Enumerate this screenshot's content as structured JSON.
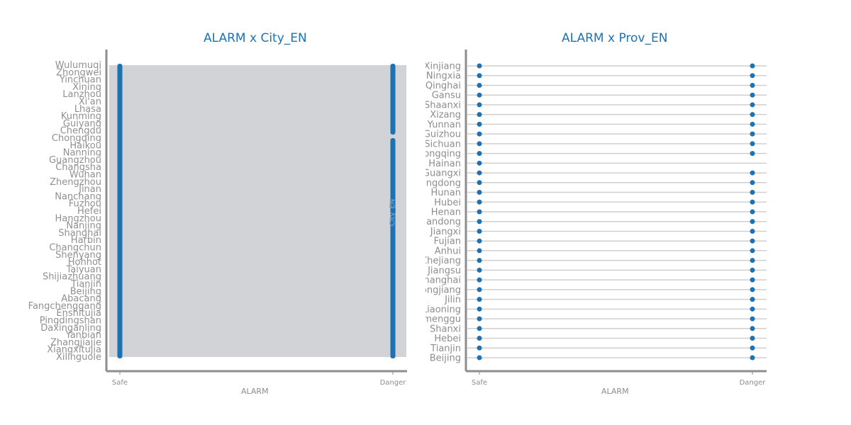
{
  "colors": {
    "accent": "#1f72b1",
    "axis": "#8d8d8d",
    "band": "#d1d3d6",
    "grid": "#cfcfcf"
  },
  "chart_data": [
    {
      "type": "scatter",
      "title": "ALARM x City_EN",
      "xlabel": "ALARM",
      "ylabel": "City_EN",
      "x_categories": [
        "Safe",
        "Danger"
      ],
      "y_labels_visible": [
        "Wulumuqi",
        "Zhongwei",
        "Yinchuan",
        "Xining",
        "Lanzhou",
        "Xi'an",
        "Lhasa",
        "Kunming",
        "Guiyang",
        "Chengdu",
        "Chongqing",
        "Haikou",
        "Nanning",
        "Guangzhou",
        "Changsha",
        "Wuhan",
        "Zhengzhou",
        "Jinan",
        "Nanchang",
        "Fuzhou",
        "Hefei",
        "Hangzhou",
        "Nanjing",
        "Shanghai",
        "Harbin",
        "Changchun",
        "Shenyang",
        "Hohhot",
        "Taiyuan",
        "Shijiazhuang",
        "Tianjin",
        "Beijing",
        "Abacang",
        "Fangchenggang",
        "Enshitujia",
        "Pingdingshan",
        "Daxinganling",
        "Yanbian",
        "Zhangjiajie",
        "Xiangxitujia",
        "Xilinguole"
      ],
      "note": "hundreds of overlapping city tick labels; all cities marked at both Safe and Danger"
    },
    {
      "type": "scatter",
      "title": "ALARM x Prov_EN",
      "xlabel": "ALARM",
      "ylabel": "Prov_EN",
      "x_categories": [
        "Safe",
        "Danger"
      ],
      "categories": [
        "Xinjiang",
        "Ningxia",
        "Qinghai",
        "Gansu",
        "Shaanxi",
        "Xizang",
        "Yunnan",
        "Guizhou",
        "Sichuan",
        "Chongqing",
        "Hainan",
        "Guangxi",
        "Guangdong",
        "Hunan",
        "Hubei",
        "Henan",
        "Shandong",
        "Jiangxi",
        "Fujian",
        "Anhui",
        "Zhejiang",
        "Jiangsu",
        "Shanghai",
        "Heilongjiang",
        "Jilin",
        "Liaoning",
        "Neimenggu",
        "Shanxi",
        "Hebei",
        "Tianjin",
        "Beijing"
      ],
      "safe": [
        1,
        1,
        1,
        1,
        1,
        1,
        1,
        1,
        1,
        1,
        1,
        1,
        1,
        1,
        1,
        1,
        1,
        1,
        1,
        1,
        1,
        1,
        1,
        1,
        1,
        1,
        1,
        1,
        1,
        1,
        1
      ],
      "danger": [
        1,
        1,
        1,
        1,
        1,
        1,
        1,
        1,
        1,
        1,
        0,
        1,
        1,
        1,
        1,
        1,
        1,
        1,
        1,
        1,
        1,
        1,
        1,
        1,
        1,
        1,
        1,
        1,
        1,
        1,
        1
      ]
    }
  ]
}
